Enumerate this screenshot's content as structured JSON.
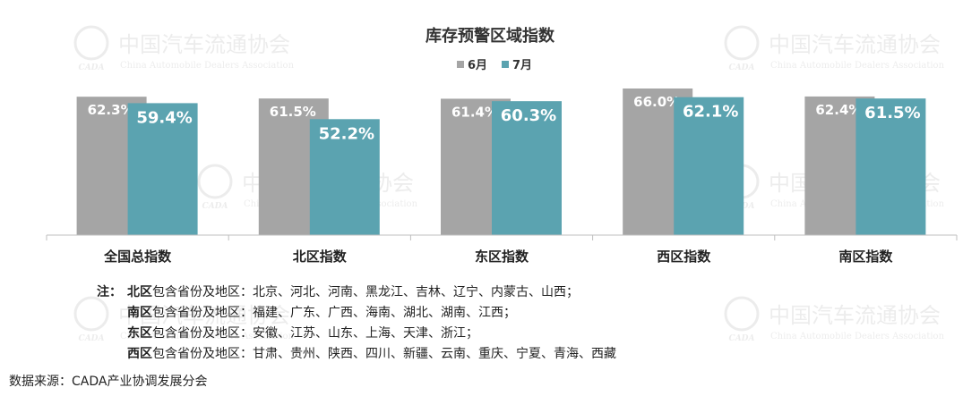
{
  "chart_data": {
    "type": "bar",
    "title": "库存预警区域指数",
    "categories": [
      "全国总指数",
      "北区指数",
      "东区指数",
      "西区指数",
      "南区指数"
    ],
    "series": [
      {
        "name": "6月",
        "values": [
          62.3,
          61.5,
          61.4,
          66.0,
          62.4
        ],
        "color": "#a5a5a5"
      },
      {
        "name": "7月",
        "values": [
          59.4,
          52.2,
          60.3,
          62.1,
          61.5
        ],
        "color": "#5ba3b0"
      }
    ],
    "data_labels": [
      [
        "62.3%",
        "61.5%",
        "61.4%",
        "66.0%",
        "62.4%"
      ],
      [
        "59.4%",
        "52.2%",
        "60.3%",
        "62.1%",
        "61.5%"
      ]
    ],
    "unit": "%",
    "ylim": [
      0,
      66.0
    ],
    "grid": false,
    "legend": "top-center"
  },
  "notes": {
    "prefix": "注：",
    "items": [
      {
        "region": "北区",
        "text": "包含省份及地区：北京、河北、河南、黑龙江、吉林、辽宁、内蒙古、山西；"
      },
      {
        "region": "南区",
        "text": "包含省份及地区：福建、广东、广西、海南、湖北、湖南、江西；"
      },
      {
        "region": "东区",
        "text": "包含省份及地区：安徽、江苏、山东、上海、天津、浙江；"
      },
      {
        "region": "西区",
        "text": "包含省份及地区：甘肃、贵州、陕西、四川、新疆、云南、重庆、宁夏、青海、西藏"
      }
    ]
  },
  "source": "数据来源：CADA产业协调发展分会",
  "watermark": {
    "cn": "中国汽车流通协会",
    "en": "China Automobile Dealers Association",
    "logo_text": "CADA"
  }
}
